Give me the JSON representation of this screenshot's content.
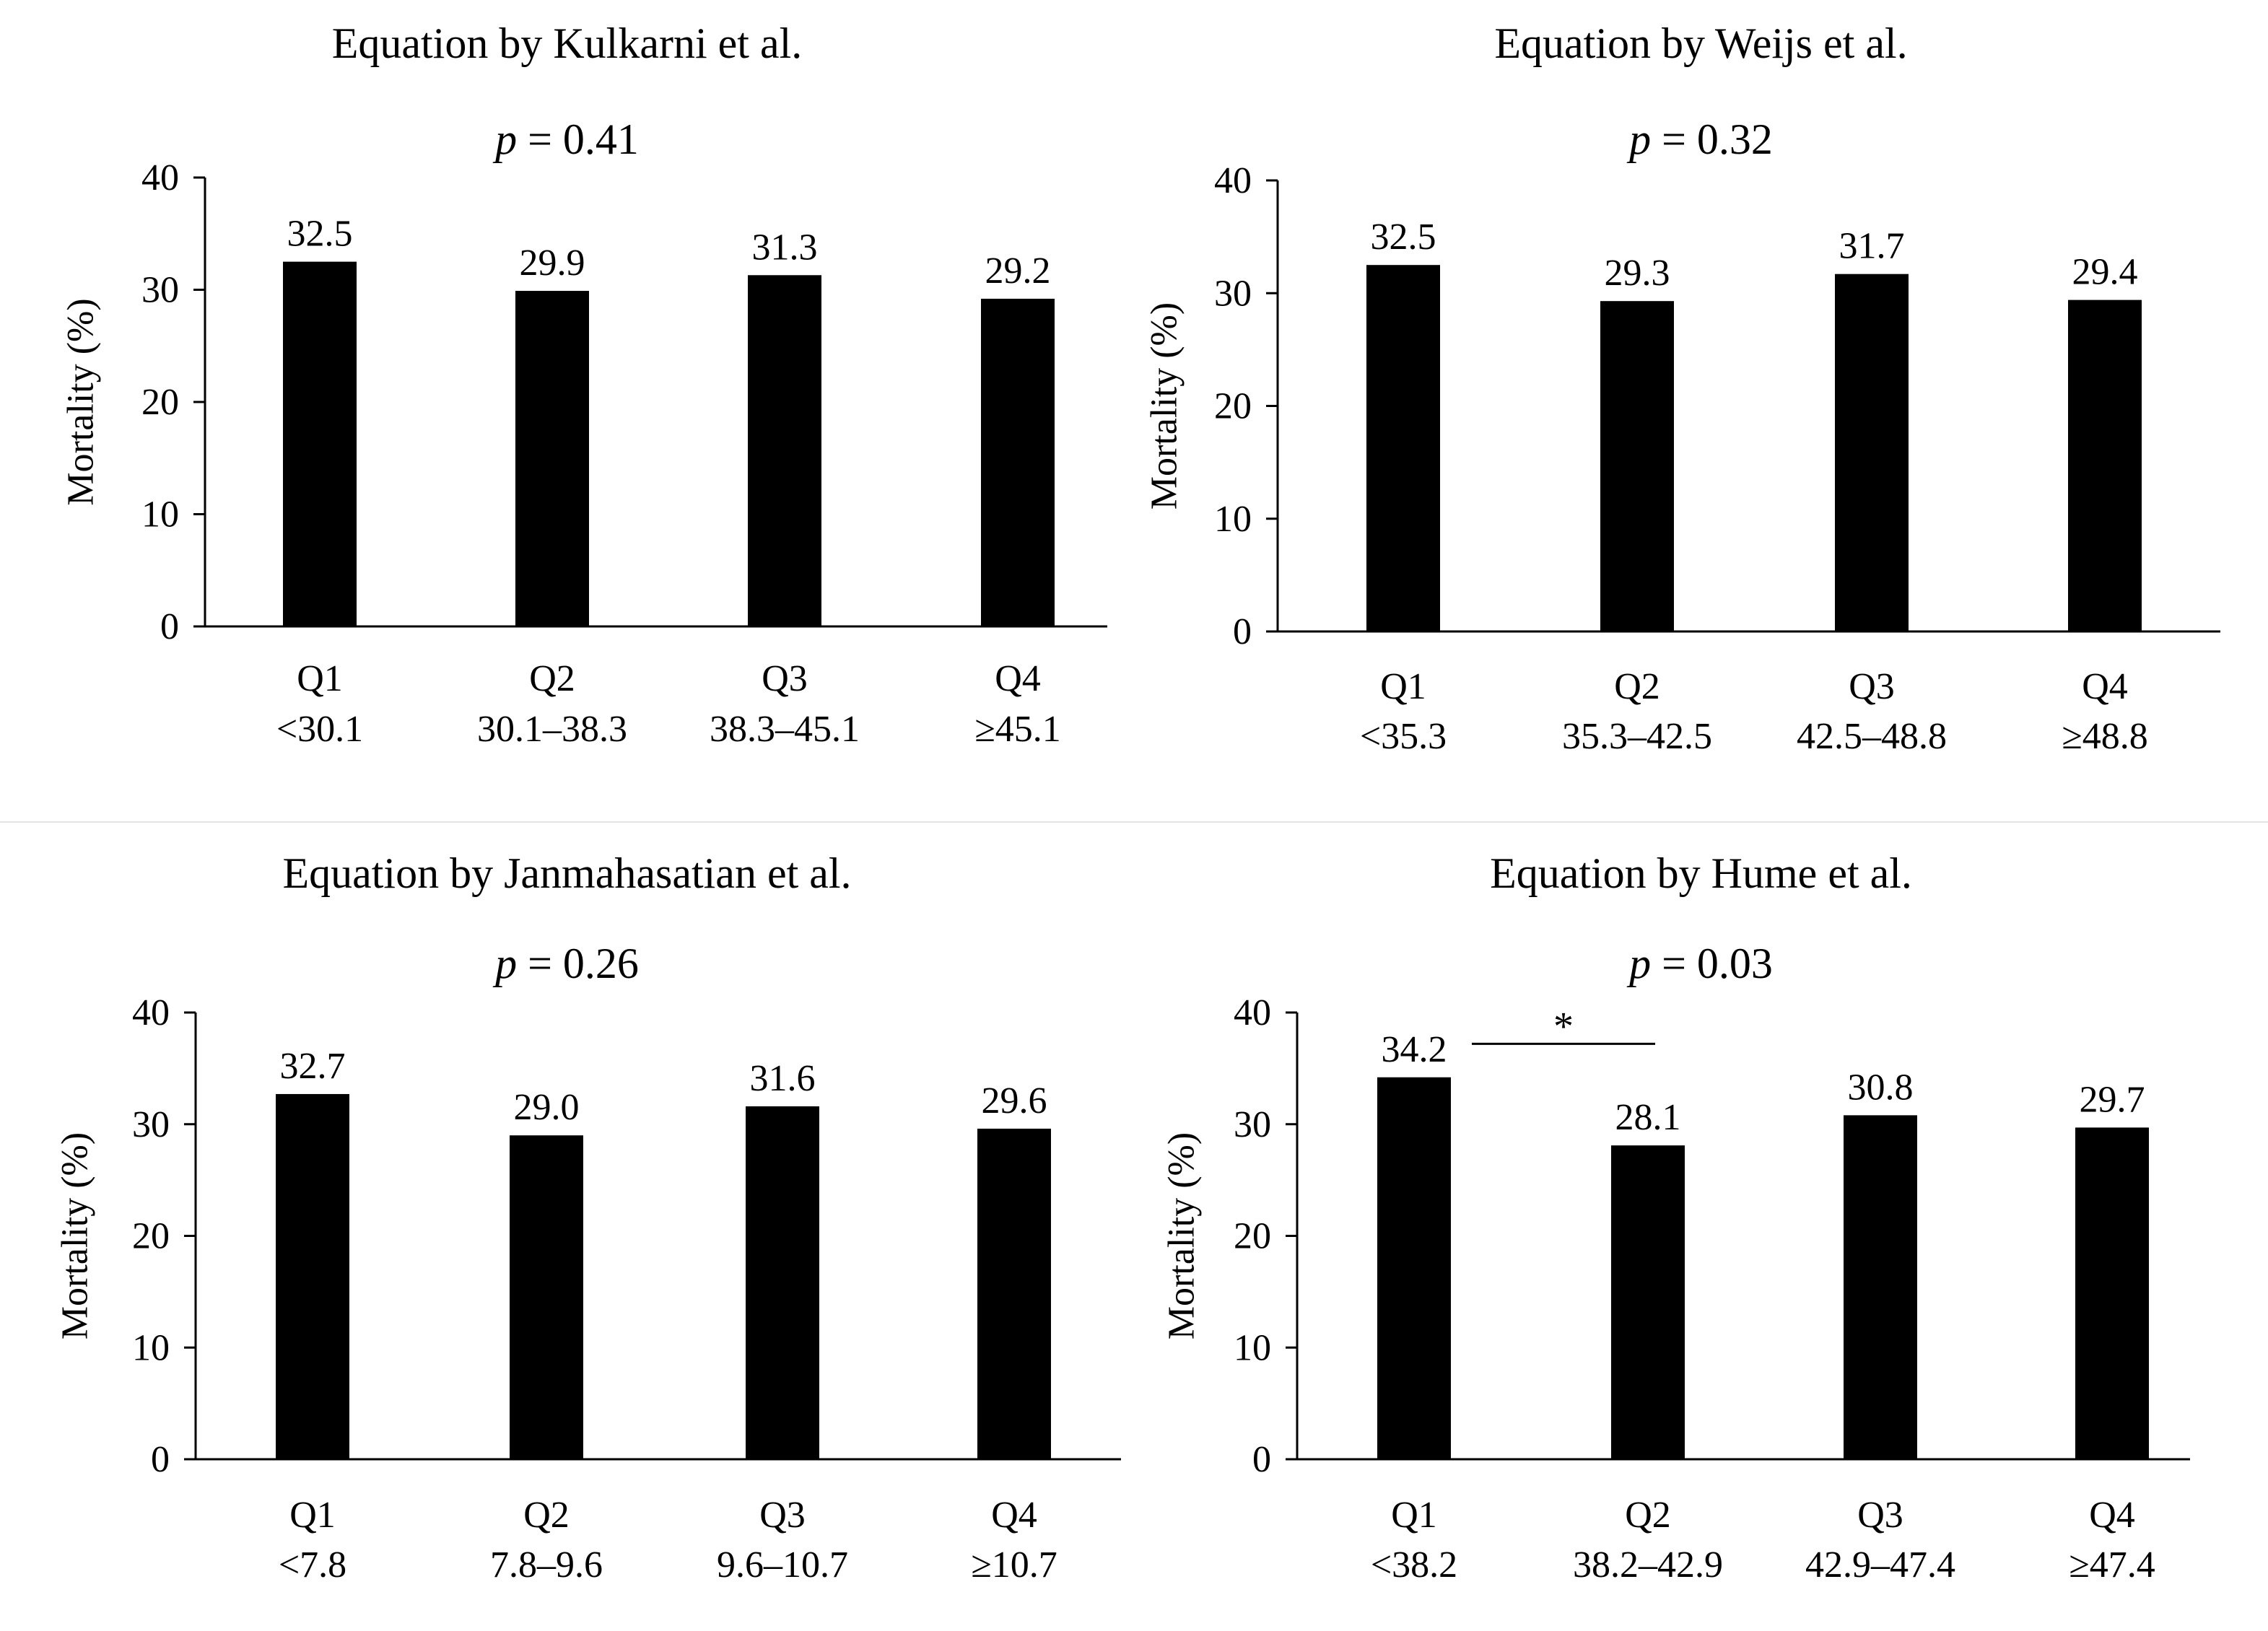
{
  "figure": {
    "label_pvalue_prefix": "p",
    "label_pvalue_equals": " = "
  },
  "chart_data": [
    {
      "type": "bar",
      "title": "Equation by Kulkarni et al.",
      "p_value": "0.41",
      "ylabel": "Mortality (%)",
      "xlabel": "",
      "ylim": [
        0,
        40
      ],
      "yticks": [
        0,
        10,
        20,
        30,
        40
      ],
      "categories": [
        "Q1",
        "Q2",
        "Q3",
        "Q4"
      ],
      "ranges": [
        "<30.1",
        "30.1–38.3",
        "38.3–45.1",
        "≥45.1"
      ],
      "values": [
        32.5,
        29.9,
        31.3,
        29.2
      ],
      "value_labels": [
        "32.5",
        "29.9",
        "31.3",
        "29.2"
      ],
      "bar_color": "#000000"
    },
    {
      "type": "bar",
      "title": "Equation by Weijs et al.",
      "p_value": "0.32",
      "ylabel": "Mortality (%)",
      "xlabel": "",
      "ylim": [
        0,
        40
      ],
      "yticks": [
        0,
        10,
        20,
        30,
        40
      ],
      "categories": [
        "Q1",
        "Q2",
        "Q3",
        "Q4"
      ],
      "ranges": [
        "<35.3",
        "35.3–42.5",
        "42.5–48.8",
        "≥48.8"
      ],
      "values": [
        32.5,
        29.3,
        31.7,
        29.4
      ],
      "value_labels": [
        "32.5",
        "29.3",
        "31.7",
        "29.4"
      ],
      "bar_color": "#000000"
    },
    {
      "type": "bar",
      "title": "Equation by Janmahasatian et al.",
      "p_value": "0.26",
      "ylabel": "Mortality (%)",
      "xlabel": "",
      "ylim": [
        0,
        40
      ],
      "yticks": [
        0,
        10,
        20,
        30,
        40
      ],
      "categories": [
        "Q1",
        "Q2",
        "Q3",
        "Q4"
      ],
      "ranges": [
        "<7.8",
        "7.8–9.6",
        "9.6–10.7",
        "≥10.7"
      ],
      "values": [
        32.7,
        29.0,
        31.6,
        29.6
      ],
      "value_labels": [
        "32.7",
        "29.0",
        "31.6",
        "29.6"
      ],
      "bar_color": "#000000"
    },
    {
      "type": "bar",
      "title": "Equation by Hume et al.",
      "p_value": "0.03",
      "ylabel": "Mortality (%)",
      "xlabel": "",
      "ylim": [
        0,
        40
      ],
      "yticks": [
        0,
        10,
        20,
        30,
        40
      ],
      "categories": [
        "Q1",
        "Q2",
        "Q3",
        "Q4"
      ],
      "ranges": [
        "<38.2",
        "38.2–42.9",
        "42.9–47.4",
        "≥47.4"
      ],
      "values": [
        34.2,
        28.1,
        30.8,
        29.7
      ],
      "value_labels": [
        "34.2",
        "28.1",
        "30.8",
        "29.7"
      ],
      "bar_color": "#000000",
      "significance": {
        "between": [
          "Q1",
          "Q2"
        ],
        "level": 37.2,
        "marker": "*"
      }
    }
  ]
}
